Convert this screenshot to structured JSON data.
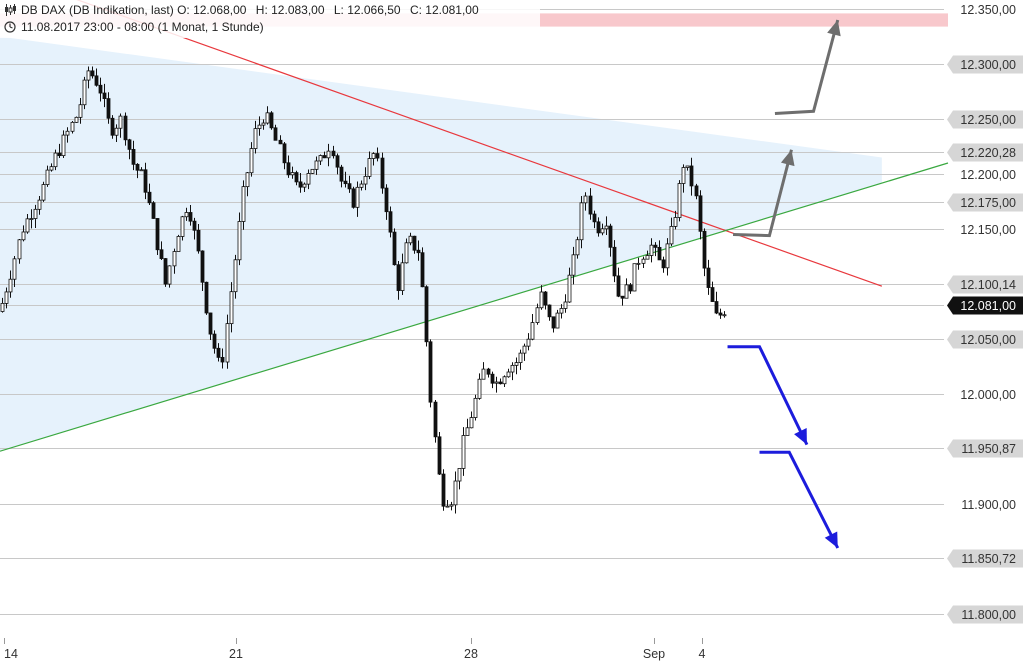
{
  "header": {
    "title": "DB DAX (DB Indikation, last)",
    "open": "O: 12.068,00",
    "high": "H: 12.083,00",
    "low": "L: 12.066,50",
    "close": "C: 12.081,00",
    "period": "11.08.2017 23:00 - 08:00",
    "interval": "(1 Monat, 1 Stunde)",
    "icons": [
      "candlestick-icon",
      "clock-icon"
    ]
  },
  "chart_data": {
    "type": "candlestick",
    "ylim": [
      11785,
      12362
    ],
    "grid": true,
    "y_ticks": [
      {
        "value": 12350,
        "label": "12.350,00",
        "kind": "plain"
      },
      {
        "value": 12300,
        "label": "12.300,00",
        "kind": "box"
      },
      {
        "value": 12250,
        "label": "12.250,00",
        "kind": "box"
      },
      {
        "value": 12220.28,
        "label": "12.220,28",
        "kind": "box"
      },
      {
        "value": 12200,
        "label": "12.200,00",
        "kind": "plain"
      },
      {
        "value": 12175,
        "label": "12.175,00",
        "kind": "box"
      },
      {
        "value": 12150,
        "label": "12.150,00",
        "kind": "plain"
      },
      {
        "value": 12100.14,
        "label": "12.100,14",
        "kind": "box"
      },
      {
        "value": 12081,
        "label": "12.081,00",
        "kind": "current"
      },
      {
        "value": 12050,
        "label": "12.050,00",
        "kind": "box"
      },
      {
        "value": 12000,
        "label": "12.000,00",
        "kind": "plain"
      },
      {
        "value": 11950.87,
        "label": "11.950,87",
        "kind": "box"
      },
      {
        "value": 11900,
        "label": "11.900,00",
        "kind": "plain"
      },
      {
        "value": 11850.72,
        "label": "11.850,72",
        "kind": "box"
      },
      {
        "value": 11800,
        "label": "11.800,00",
        "kind": "box"
      }
    ],
    "x_labels": [
      "14",
      "21",
      "28",
      "Sep",
      "4"
    ],
    "price_path": [
      [
        0,
        12075
      ],
      [
        2,
        12150
      ],
      [
        4,
        12190
      ],
      [
        5,
        12215
      ],
      [
        7,
        12255
      ],
      [
        8,
        12295
      ],
      [
        9,
        12280
      ],
      [
        10,
        12240
      ],
      [
        11,
        12250
      ],
      [
        12,
        12210
      ],
      [
        13,
        12195
      ],
      [
        14,
        12150
      ],
      [
        15,
        12100
      ],
      [
        16,
        12145
      ],
      [
        17,
        12175
      ],
      [
        18,
        12125
      ],
      [
        19,
        12060
      ],
      [
        20,
        12020
      ],
      [
        21,
        12100
      ],
      [
        22,
        12180
      ],
      [
        23,
        12235
      ],
      [
        24,
        12255
      ],
      [
        25,
        12230
      ],
      [
        26,
        12205
      ],
      [
        27,
        12185
      ],
      [
        28,
        12205
      ],
      [
        29,
        12210
      ],
      [
        30,
        12230
      ],
      [
        31,
        12190
      ],
      [
        32,
        12175
      ],
      [
        33,
        12200
      ],
      [
        34,
        12220
      ],
      [
        35,
        12170
      ],
      [
        36,
        12095
      ],
      [
        37,
        12140
      ],
      [
        38,
        12130
      ],
      [
        38.5,
        12075
      ],
      [
        39,
        12000
      ],
      [
        40,
        11905
      ],
      [
        41,
        11905
      ],
      [
        42,
        11955
      ],
      [
        43,
        11990
      ],
      [
        44,
        12025
      ],
      [
        45,
        12010
      ],
      [
        46,
        12025
      ],
      [
        47,
        12030
      ],
      [
        48,
        12055
      ],
      [
        49,
        12090
      ],
      [
        50,
        12060
      ],
      [
        51,
        12080
      ],
      [
        52,
        12120
      ],
      [
        53,
        12185
      ],
      [
        54,
        12150
      ],
      [
        55,
        12160
      ],
      [
        56,
        12090
      ],
      [
        57,
        12095
      ],
      [
        58,
        12125
      ],
      [
        59,
        12135
      ],
      [
        60,
        12115
      ],
      [
        61,
        12150
      ],
      [
        62,
        12210
      ],
      [
        63,
        12185
      ],
      [
        64,
        12100
      ],
      [
        65,
        12068
      ],
      [
        66,
        12081
      ]
    ],
    "x_range": [
      0,
      86
    ],
    "triangle_upper": {
      "from": [
        0,
        12325
      ],
      "to": [
        80,
        12215
      ]
    },
    "support_line": {
      "from": [
        0,
        11948
      ],
      "to": [
        86,
        12210
      ]
    },
    "resistance_line": {
      "from": [
        6,
        12362
      ],
      "to": [
        80,
        12098
      ]
    },
    "resistance_color": "#e8383d",
    "support_color": "#3aa840",
    "triangle_fill": "#e6f2fc",
    "target_band": {
      "from": 12334,
      "to": 12346,
      "color": "#f8c8cc"
    },
    "annotations": [
      {
        "name": "gray-arrow-upper",
        "color": "#6e6e6e",
        "points": [
          [
            70.3,
            12255
          ],
          [
            73.8,
            12257
          ],
          [
            76.0,
            12340
          ]
        ]
      },
      {
        "name": "gray-arrow-lower",
        "color": "#6e6e6e",
        "points": [
          [
            66.5,
            12145
          ],
          [
            69.8,
            12144
          ],
          [
            71.8,
            12222
          ]
        ]
      },
      {
        "name": "blue-arrow-upper",
        "color": "#1c1cdc",
        "points": [
          [
            66.0,
            12043
          ],
          [
            68.9,
            12043
          ],
          [
            73.2,
            11954
          ]
        ]
      },
      {
        "name": "blue-arrow-lower",
        "color": "#1c1cdc",
        "points": [
          [
            68.9,
            11947
          ],
          [
            71.6,
            11947
          ],
          [
            76.0,
            11860
          ]
        ]
      }
    ]
  }
}
